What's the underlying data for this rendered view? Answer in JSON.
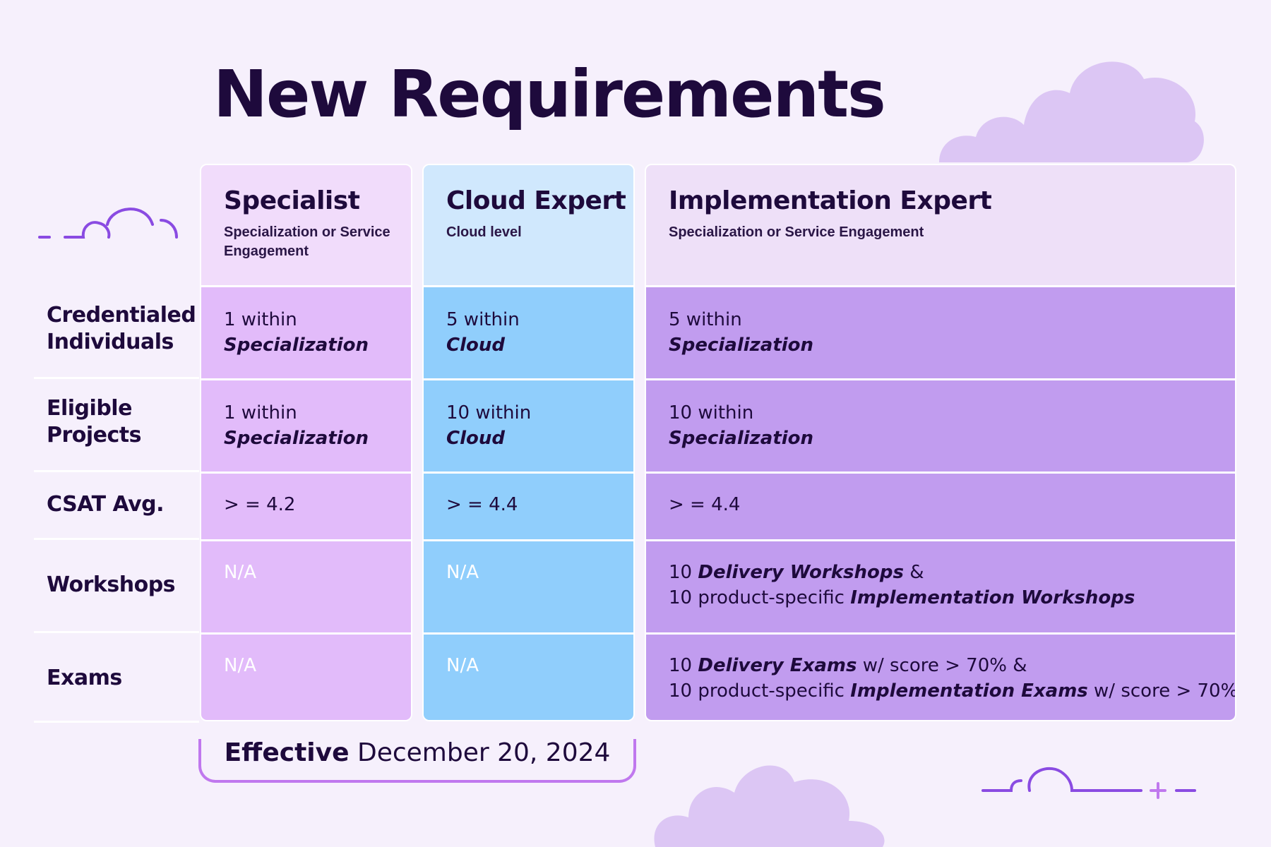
{
  "title": "New Requirements",
  "colors": {
    "background": "#f6f0fc",
    "text": "#1e0a3c",
    "specialist_header": "#f1dcfb",
    "specialist_cell": "#e2bbfa",
    "cloud_header": "#d0e8fd",
    "cloud_cell": "#90cefc",
    "impl_header": "#eee0f8",
    "impl_cell": "#c19cef",
    "accent": "#8a4be2"
  },
  "row_labels": {
    "credentialed": [
      "Credentialed",
      "Individuals"
    ],
    "eligible": [
      "Eligible",
      "Projects"
    ],
    "csat": "CSAT Avg.",
    "workshops": "Workshops",
    "exams": "Exams"
  },
  "columns": {
    "specialist": {
      "name": "Specialist",
      "subtitle": "Specialization or Service Engagement",
      "credentialed": {
        "count": "1 within",
        "scope": "Specialization"
      },
      "eligible": {
        "count": "1 within",
        "scope": "Specialization"
      },
      "csat": "> = 4.2",
      "workshops": "N/A",
      "exams": "N/A"
    },
    "cloud": {
      "name": "Cloud Expert",
      "subtitle": "Cloud level",
      "credentialed": {
        "count": "5 within",
        "scope": "Cloud"
      },
      "eligible": {
        "count": "10 within",
        "scope": "Cloud"
      },
      "csat": "> = 4.4",
      "workshops": "N/A",
      "exams": "N/A"
    },
    "impl": {
      "name": "Implementation Expert",
      "subtitle": "Specialization or Service Engagement",
      "credentialed": {
        "count": "5 within",
        "scope": "Specialization"
      },
      "eligible": {
        "count": "10 within",
        "scope": "Specialization"
      },
      "csat": "> = 4.4",
      "workshops": {
        "l1_a": "10 ",
        "l1_b": "Delivery Workshops",
        "l1_c": " &",
        "l2_a": "10 product-specific ",
        "l2_b": "Implementation Workshops"
      },
      "exams": {
        "l1_a": "10 ",
        "l1_b": "Delivery Exams",
        "l1_c": " w/ score > 70% &",
        "l2_a": "10 product-specific ",
        "l2_b": "Implementation Exams",
        "l2_c": " w/ score > 70%"
      }
    }
  },
  "effective": {
    "label": "Effective",
    "date": "December 20, 2024"
  },
  "icons": [
    "cloud-outline-icon",
    "cloud-shape-icon",
    "plus-icon"
  ]
}
